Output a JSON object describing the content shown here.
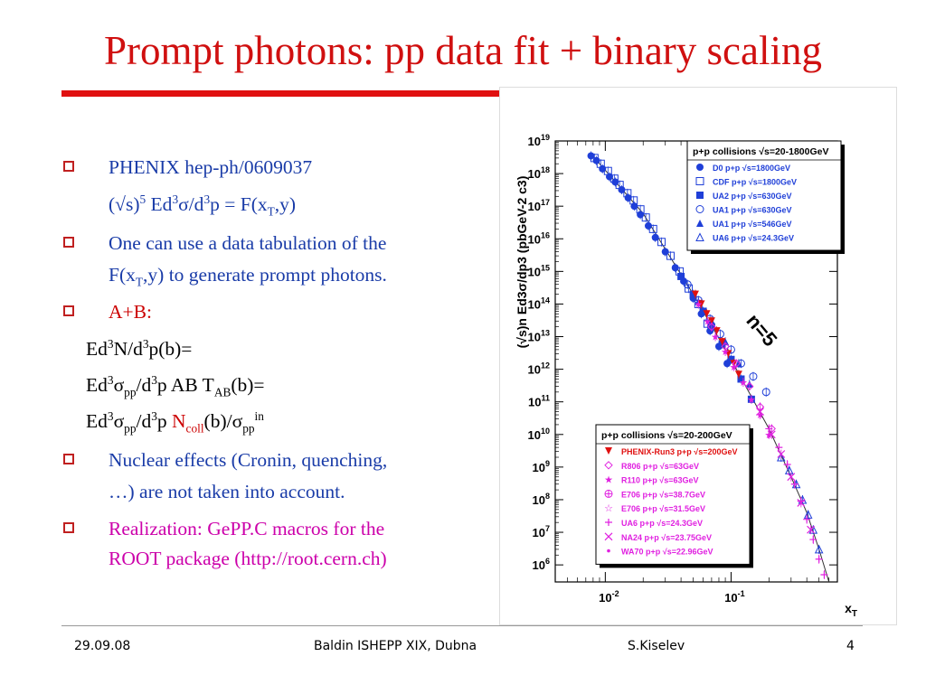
{
  "slide": {
    "title": "Prompt photons: pp data fit + binary scaling"
  },
  "bullets": {
    "b1_line1": "PHENIX hep-ph/0609037",
    "b1_line2_pre": "(√s)",
    "b1_line2_sup1": "5",
    "b1_line2_mid": " Ed",
    "b1_line2_sup2": "3",
    "b1_line2_mid2": "σ/d",
    "b1_line2_sup3": "3",
    "b1_line2_mid3": "p = F(x",
    "b1_line2_sub": "T",
    "b1_line2_end": ",y)",
    "b2_line1": "One can use a data tabulation of the",
    "b2_line2_pre": "F(x",
    "b2_line2_sub": "T",
    "b2_line2_end": ",y) to generate prompt photons.",
    "b3": "A+B:",
    "eq1_pre": "Ed",
    "eq1_sup1": "3",
    "eq1_mid": "N/d",
    "eq1_sup2": "3",
    "eq1_end": "p(b)=",
    "eq2_pre": "Ed",
    "eq2_sup1": "3",
    "eq2_sigma": "σ",
    "eq2_sub1": "pp",
    "eq2_mid": "/d",
    "eq2_sup2": "3",
    "eq2_mid2": "p AB T",
    "eq2_sub2": "AB",
    "eq2_end": "(b)=",
    "eq3_pre": "Ed",
    "eq3_sup1": "3",
    "eq3_sigma": "σ",
    "eq3_sub1": "pp",
    "eq3_mid": "/d",
    "eq3_sup2": "3",
    "eq3_mid2": "p ",
    "eq3_N": "N",
    "eq3_sub2": "coll",
    "eq3_mid3": "(b)/σ",
    "eq3_sub3": "pp",
    "eq3_sup3": "in",
    "b4_line1": "Nuclear effects (Cronin, quenching,",
    "b4_line2": "…) are not taken into account.",
    "b5_line1": "Realization: GePP.C macros for the",
    "b5_line2": "ROOT package (http://root.cern.ch)"
  },
  "footer": {
    "date": "29.09.08",
    "conference": "Baldin ISHEPP XIX, Dubna",
    "author": "S.Kiselev",
    "page": "4"
  },
  "colors": {
    "title": "#d01010",
    "body_blue": "#1a3ca8",
    "red": "#cc0000",
    "magenta": "#cc00aa",
    "series_blue": "#1f3fd8",
    "series_red": "#e01010",
    "series_magenta": "#e020e0"
  },
  "chart_data": {
    "type": "scatter",
    "x_scale": "log",
    "y_scale": "log",
    "xlim": [
      0.004,
      0.7
    ],
    "ylim": [
      300000,
      1e+19
    ],
    "xlabel": "x_T",
    "ylabel": "(√s)^n Ed^3σ/dp^3 (pbGeV^-2 c^3)",
    "x_ticks": [
      0.01,
      0.1
    ],
    "x_tick_labels": [
      "10^-2",
      "10^-1"
    ],
    "y_ticks": [
      1000000.0,
      10000000.0,
      100000000.0,
      1000000000.0,
      10000000000.0,
      100000000000.0,
      1000000000000.0,
      10000000000000.0,
      100000000000000.0,
      1000000000000000.0,
      1e+16,
      1e+17,
      1e+18,
      1e+19
    ],
    "y_tick_labels": [
      "10^6",
      "10^7",
      "10^8",
      "10^9",
      "10^10",
      "10^11",
      "10^12",
      "10^13",
      "10^14",
      "10^15",
      "10^16",
      "10^17",
      "10^18",
      "10^19"
    ],
    "annotation": "n=5",
    "legend_top": {
      "title": "p+p collisions √s=20-1800GeV",
      "placement": "top-right",
      "entries": [
        {
          "marker": "filled-circle",
          "label": "D0 p+p √s=1800GeV"
        },
        {
          "marker": "open-square",
          "label": "CDF p+p √s=1800GeV"
        },
        {
          "marker": "filled-square",
          "label": "UA2 p+p √s=630GeV"
        },
        {
          "marker": "open-circle",
          "label": "UA1 p+p √s=630GeV"
        },
        {
          "marker": "filled-triangle",
          "label": "UA1 p+p √s=546GeV"
        },
        {
          "marker": "open-triangle",
          "label": "UA6 p+p √s=24.3GeV"
        }
      ]
    },
    "legend_bottom": {
      "title": "p+p collisions √s=20-200GeV",
      "placement": "bottom-right",
      "entries": [
        {
          "marker": "filled-triangle-down",
          "label": "PHENIX-Run3 p+p √s=200GeV"
        },
        {
          "marker": "open-diamond",
          "label": "R806 p+p √s=63GeV"
        },
        {
          "marker": "star",
          "label": "R110 p+p √s=63GeV"
        },
        {
          "marker": "open-cross",
          "label": "E706 p+p √s=38.7GeV"
        },
        {
          "marker": "open-star",
          "label": "E706 p+p √s=31.5GeV"
        },
        {
          "marker": "plus",
          "label": "UA6 p+p √s=24.3GeV"
        },
        {
          "marker": "x",
          "label": "NA24 p+p √s=23.75GeV"
        },
        {
          "marker": "dot",
          "label": "WA70 p+p √s=22.96GeV"
        }
      ]
    },
    "series": [
      {
        "marker": "filled-circle",
        "color": "blue",
        "x": [
          0.0077,
          0.0085,
          0.0095,
          0.0108,
          0.012,
          0.0135,
          0.0152,
          0.017,
          0.019,
          0.022,
          0.025,
          0.03,
          0.036,
          0.042,
          0.05,
          0.058,
          0.068,
          0.08,
          0.093
        ],
        "y": [
          3.5e+18,
          2.5e+18,
          1.4e+18,
          8e+17,
          5.5e+17,
          3.2e+17,
          1.8e+17,
          1e+17,
          5.5e+16,
          2.5e+16,
          1.1e+16,
          4000000000000000.0,
          1300000000000000.0,
          500000000000000.0,
          150000000000000.0,
          50000000000000.0,
          15000000000000.0,
          5000000000000.0,
          1500000000000.0
        ]
      },
      {
        "marker": "open-square",
        "color": "blue",
        "x": [
          0.0082,
          0.0092,
          0.0105,
          0.0118,
          0.013,
          0.015,
          0.0168,
          0.019,
          0.021,
          0.024,
          0.028,
          0.033,
          0.039,
          0.046,
          0.055,
          0.065
        ],
        "y": [
          3e+18,
          2e+18,
          1.2e+18,
          7e+17,
          4.5e+17,
          2.5e+17,
          1.5e+17,
          8e+16,
          4.5e+16,
          2e+16,
          8000000000000000.0,
          3000000000000000.0,
          1000000000000000.0,
          300000000000000.0,
          100000000000000.0,
          25000000000000.0
        ]
      },
      {
        "marker": "filled-square",
        "color": "blue",
        "x": [
          0.04,
          0.05,
          0.06,
          0.07,
          0.085,
          0.1,
          0.12,
          0.145
        ],
        "y": [
          700000000000000.0,
          200000000000000.0,
          60000000000000.0,
          20000000000000.0,
          6000000000000.0,
          2000000000000.0,
          500000000000.0,
          120000000000.0
        ]
      },
      {
        "marker": "open-circle",
        "color": "blue",
        "x": [
          0.045,
          0.055,
          0.068,
          0.082,
          0.1,
          0.12,
          0.15,
          0.19
        ],
        "y": [
          400000000000000.0,
          130000000000000.0,
          35000000000000.0,
          12000000000000.0,
          4000000000000.0,
          1500000000000.0,
          600000000000.0,
          200000000000.0
        ]
      },
      {
        "marker": "filled-triangle",
        "color": "blue",
        "x": [
          0.055,
          0.07,
          0.09,
          0.115,
          0.14
        ],
        "y": [
          120000000000000.0,
          30000000000000.0,
          7000000000000.0,
          1500000000000.0,
          350000000000.0
        ]
      },
      {
        "marker": "open-triangle",
        "color": "blue",
        "x": [
          0.25,
          0.29,
          0.33,
          0.37,
          0.41,
          0.45,
          0.5
        ],
        "y": [
          2000000000.0,
          800000000.0,
          300000000.0,
          100000000.0,
          35000000.0,
          12000000.0,
          3000000.0
        ]
      },
      {
        "marker": "filled-triangle-down",
        "color": "red",
        "x": [
          0.052,
          0.058,
          0.064,
          0.07,
          0.077,
          0.085,
          0.095,
          0.105,
          0.115
        ],
        "y": [
          200000000000000.0,
          100000000000000.0,
          50000000000000.0,
          30000000000000.0,
          15000000000000.0,
          7000000000000.0,
          3000000000000.0,
          1500000000000.0,
          700000000000.0
        ]
      },
      {
        "marker": "star",
        "color": "magenta",
        "x": [
          0.055,
          0.065,
          0.075,
          0.09,
          0.105,
          0.125,
          0.145,
          0.17,
          0.2
        ],
        "y": [
          100000000000000.0,
          30000000000000.0,
          10000000000000.0,
          3500000000000.0,
          1200000000000.0,
          400000000000.0,
          120000000000.0,
          40000000000.0,
          10000000000.0
        ]
      },
      {
        "marker": "open-diamond",
        "color": "magenta",
        "x": [
          0.07,
          0.09,
          0.11,
          0.14,
          0.17,
          0.21
        ],
        "y": [
          20000000000000.0,
          5000000000000.0,
          1500000000000.0,
          300000000000.0,
          70000000000.0,
          15000000000.0
        ]
      },
      {
        "marker": "plus",
        "color": "magenta",
        "x": [
          0.2,
          0.24,
          0.28,
          0.32,
          0.36,
          0.4,
          0.45,
          0.5,
          0.55
        ],
        "y": [
          15000000000.0,
          4000000000.0,
          1200000000.0,
          300000000.0,
          90000000.0,
          25000000.0,
          6000000.0,
          1500000.0,
          500000.0
        ]
      },
      {
        "marker": "x",
        "color": "magenta",
        "x": [
          0.17,
          0.21,
          0.25,
          0.3,
          0.36,
          0.43
        ],
        "y": [
          50000000000.0,
          10000000000.0,
          2500000000.0,
          500000000.0,
          80000000.0,
          12000000.0
        ]
      }
    ],
    "fit_line": {
      "x": [
        0.0077,
        0.02,
        0.05,
        0.1,
        0.2,
        0.3,
        0.4,
        0.5,
        0.6
      ],
      "y": [
        4e+18,
        6e+16,
        200000000000000.0,
        2000000000000.0,
        15000000000.0,
        500000000.0,
        40000000.0,
        3000000.0,
        300000.0
      ]
    }
  }
}
